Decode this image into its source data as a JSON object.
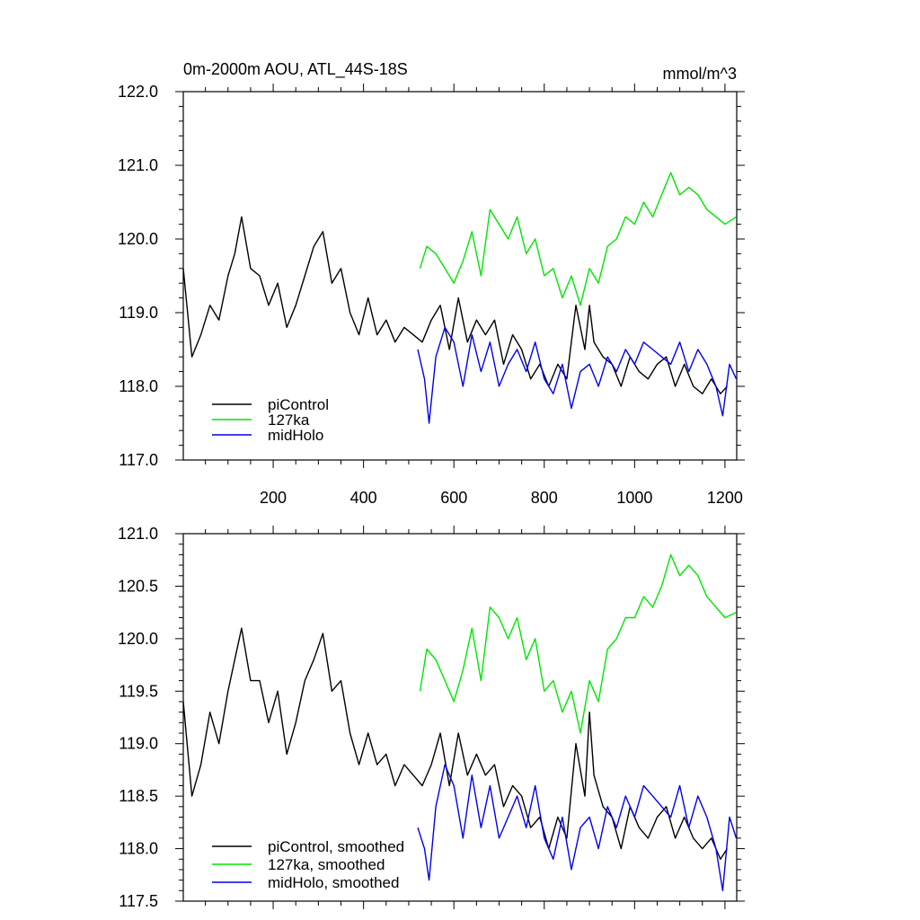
{
  "colors": {
    "piControl": "#000000",
    "127ka": "#00e600",
    "midHolo": "#0000ee"
  },
  "chart_data": [
    {
      "type": "line",
      "title": "0m-2000m AOU, ATL_44S-18S",
      "units": "mmol/m^3",
      "xlim": [
        1,
        1226
      ],
      "ylim": [
        117.0,
        122.0
      ],
      "xticks": [
        200,
        400,
        600,
        800,
        1000,
        1200
      ],
      "yticks": [
        117.0,
        118.0,
        119.0,
        120.0,
        121.0,
        122.0
      ],
      "ytick_labels": [
        "117.0",
        "118.0",
        "119.0",
        "120.0",
        "121.0",
        "122.0"
      ],
      "xtick_labels": [
        "200",
        "400",
        "600",
        "800",
        "1000",
        "1200"
      ],
      "legend_position": "bottom-left",
      "series": [
        {
          "name": "piControl",
          "color_key": "piControl",
          "x": [
            1,
            20,
            40,
            60,
            80,
            100,
            115,
            130,
            150,
            170,
            190,
            210,
            230,
            250,
            270,
            290,
            310,
            330,
            350,
            370,
            390,
            410,
            430,
            450,
            470,
            490,
            510,
            530,
            550,
            570,
            590,
            610,
            630,
            650,
            670,
            690,
            710,
            730,
            750,
            770,
            790,
            810,
            830,
            850,
            870,
            890,
            900,
            910,
            930,
            950,
            970,
            990,
            1010,
            1030,
            1050,
            1070,
            1090,
            1110,
            1130,
            1150,
            1170,
            1190,
            1205
          ],
          "y": [
            119.6,
            118.4,
            118.7,
            119.1,
            118.9,
            119.5,
            119.8,
            120.3,
            119.6,
            119.5,
            119.1,
            119.4,
            118.8,
            119.1,
            119.5,
            119.9,
            120.1,
            119.4,
            119.6,
            119.0,
            118.7,
            119.2,
            118.7,
            118.9,
            118.6,
            118.8,
            118.7,
            118.6,
            118.9,
            119.1,
            118.5,
            119.2,
            118.6,
            118.9,
            118.7,
            118.9,
            118.3,
            118.7,
            118.5,
            118.1,
            118.3,
            118.0,
            118.3,
            118.1,
            119.1,
            118.5,
            119.1,
            118.6,
            118.4,
            118.3,
            118.0,
            118.4,
            118.2,
            118.1,
            118.3,
            118.4,
            118.0,
            118.3,
            118.0,
            117.9,
            118.1,
            117.9,
            118.0
          ]
        },
        {
          "name": "127ka",
          "color_key": "127ka",
          "x": [
            525,
            540,
            560,
            580,
            600,
            620,
            640,
            660,
            680,
            700,
            720,
            740,
            760,
            780,
            800,
            820,
            840,
            860,
            880,
            900,
            920,
            940,
            960,
            980,
            1000,
            1020,
            1040,
            1060,
            1080,
            1100,
            1120,
            1140,
            1160,
            1180,
            1200,
            1225
          ],
          "y": [
            119.6,
            119.9,
            119.8,
            119.6,
            119.4,
            119.7,
            120.1,
            119.5,
            120.4,
            120.2,
            120.0,
            120.3,
            119.8,
            120.0,
            119.5,
            119.6,
            119.2,
            119.5,
            119.1,
            119.6,
            119.4,
            119.9,
            120.0,
            120.3,
            120.2,
            120.5,
            120.3,
            120.6,
            120.9,
            120.6,
            120.7,
            120.6,
            120.4,
            120.3,
            120.2,
            120.3
          ]
        },
        {
          "name": "midHolo",
          "color_key": "midHolo",
          "x": [
            520,
            535,
            545,
            560,
            580,
            600,
            620,
            640,
            660,
            680,
            700,
            720,
            740,
            760,
            780,
            800,
            820,
            840,
            860,
            880,
            900,
            920,
            940,
            960,
            980,
            1000,
            1020,
            1040,
            1060,
            1080,
            1100,
            1120,
            1140,
            1160,
            1180,
            1195,
            1210,
            1225
          ],
          "y": [
            118.5,
            118.1,
            117.5,
            118.4,
            118.8,
            118.6,
            118.0,
            118.7,
            118.2,
            118.6,
            118.0,
            118.3,
            118.5,
            118.2,
            118.6,
            118.1,
            117.9,
            118.3,
            117.7,
            118.2,
            118.3,
            118.0,
            118.4,
            118.2,
            118.5,
            118.3,
            118.6,
            118.5,
            118.4,
            118.3,
            118.6,
            118.2,
            118.5,
            118.3,
            118.0,
            117.6,
            118.3,
            118.1
          ]
        }
      ]
    },
    {
      "type": "line",
      "title": "",
      "xlim": [
        1,
        1226
      ],
      "ylim": [
        117.5,
        121.0
      ],
      "xticks": [
        200,
        400,
        600,
        800,
        1000,
        1200
      ],
      "yticks": [
        117.5,
        118.0,
        118.5,
        119.0,
        119.5,
        120.0,
        120.5,
        121.0
      ],
      "ytick_labels": [
        "117.5",
        "118.0",
        "118.5",
        "119.0",
        "119.5",
        "120.0",
        "120.5",
        "121.0"
      ],
      "legend_position": "bottom-left",
      "series": [
        {
          "name": "piControl, smoothed",
          "color_key": "piControl",
          "x": [
            1,
            20,
            40,
            60,
            80,
            100,
            115,
            130,
            150,
            170,
            190,
            210,
            230,
            250,
            270,
            290,
            310,
            330,
            350,
            370,
            390,
            410,
            430,
            450,
            470,
            490,
            510,
            530,
            550,
            570,
            590,
            610,
            630,
            650,
            670,
            690,
            710,
            730,
            750,
            770,
            790,
            810,
            830,
            850,
            870,
            890,
            900,
            910,
            930,
            950,
            970,
            990,
            1010,
            1030,
            1050,
            1070,
            1090,
            1110,
            1130,
            1150,
            1170,
            1190,
            1205
          ],
          "y": [
            119.4,
            118.5,
            118.8,
            119.3,
            119.0,
            119.5,
            119.8,
            120.1,
            119.6,
            119.6,
            119.2,
            119.5,
            118.9,
            119.2,
            119.6,
            119.8,
            120.05,
            119.5,
            119.6,
            119.1,
            118.8,
            119.1,
            118.8,
            118.9,
            118.6,
            118.8,
            118.7,
            118.6,
            118.8,
            119.1,
            118.6,
            119.1,
            118.7,
            118.9,
            118.7,
            118.8,
            118.4,
            118.6,
            118.5,
            118.2,
            118.3,
            118.0,
            118.3,
            118.1,
            119.0,
            118.5,
            119.3,
            118.7,
            118.4,
            118.3,
            118.0,
            118.4,
            118.2,
            118.1,
            118.3,
            118.4,
            118.1,
            118.3,
            118.1,
            118.0,
            118.1,
            117.9,
            118.0
          ]
        },
        {
          "name": "127ka, smoothed",
          "color_key": "127ka",
          "x": [
            525,
            540,
            560,
            580,
            600,
            620,
            640,
            660,
            680,
            700,
            720,
            740,
            760,
            780,
            800,
            820,
            840,
            860,
            880,
            900,
            920,
            940,
            960,
            980,
            1000,
            1020,
            1040,
            1060,
            1080,
            1100,
            1120,
            1140,
            1160,
            1180,
            1200,
            1225
          ],
          "y": [
            119.5,
            119.9,
            119.8,
            119.6,
            119.4,
            119.7,
            120.1,
            119.6,
            120.3,
            120.2,
            120.0,
            120.2,
            119.8,
            120.0,
            119.5,
            119.6,
            119.3,
            119.5,
            119.1,
            119.6,
            119.4,
            119.9,
            120.0,
            120.2,
            120.2,
            120.4,
            120.3,
            120.5,
            120.8,
            120.6,
            120.7,
            120.6,
            120.4,
            120.3,
            120.2,
            120.25
          ]
        },
        {
          "name": "midHolo, smoothed",
          "color_key": "midHolo",
          "x": [
            520,
            535,
            545,
            560,
            580,
            600,
            620,
            640,
            660,
            680,
            700,
            720,
            740,
            760,
            780,
            800,
            820,
            840,
            860,
            880,
            900,
            920,
            940,
            960,
            980,
            1000,
            1020,
            1040,
            1060,
            1080,
            1100,
            1120,
            1140,
            1160,
            1180,
            1195,
            1210,
            1225
          ],
          "y": [
            118.2,
            118.0,
            117.7,
            118.4,
            118.8,
            118.6,
            118.1,
            118.7,
            118.2,
            118.6,
            118.1,
            118.3,
            118.5,
            118.2,
            118.6,
            118.1,
            117.9,
            118.3,
            117.8,
            118.2,
            118.3,
            118.0,
            118.4,
            118.2,
            118.5,
            118.3,
            118.6,
            118.5,
            118.4,
            118.3,
            118.6,
            118.2,
            118.5,
            118.3,
            118.0,
            117.6,
            118.3,
            118.1
          ]
        }
      ]
    }
  ]
}
